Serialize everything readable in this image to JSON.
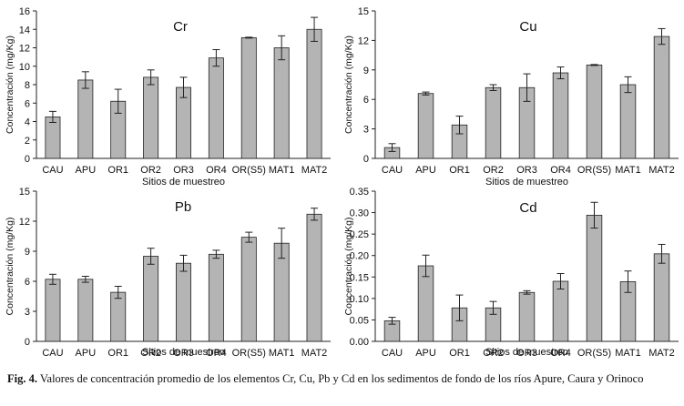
{
  "chart_data": [
    {
      "type": "bar",
      "title": "Cr",
      "xlabel": "Sitios de muestreo",
      "ylabel": "Concentración (mg/Kg)",
      "categories": [
        "CAU",
        "APU",
        "OR1",
        "OR2",
        "OR3",
        "OR4",
        "OR(S5)",
        "MAT1",
        "MAT2"
      ],
      "values": [
        4.5,
        8.5,
        6.2,
        8.8,
        7.7,
        10.9,
        13.1,
        12.0,
        14.0
      ],
      "errors": [
        0.6,
        0.9,
        1.3,
        0.8,
        1.1,
        0.9,
        0.05,
        1.3,
        1.3
      ],
      "ylim": [
        0,
        16
      ],
      "yticks": [
        "0",
        "2",
        "4",
        "6",
        "8",
        "10",
        "12",
        "14",
        "16"
      ],
      "grid": false
    },
    {
      "type": "bar",
      "title": "Cu",
      "xlabel": "Sitios de muestreo",
      "ylabel": "Concentración (mg/Kg)",
      "categories": [
        "CAU",
        "APU",
        "OR1",
        "OR2",
        "OR3",
        "OR4",
        "OR(S5)",
        "MAT1",
        "MAT2"
      ],
      "values": [
        1.1,
        6.6,
        3.4,
        7.2,
        7.2,
        8.7,
        9.5,
        7.5,
        12.4
      ],
      "errors": [
        0.4,
        0.15,
        0.9,
        0.3,
        1.4,
        0.6,
        0.05,
        0.8,
        0.8
      ],
      "ylim": [
        0,
        15
      ],
      "yticks": [
        "0",
        "3",
        "6",
        "9",
        "12",
        "15"
      ],
      "grid": false
    },
    {
      "type": "bar",
      "title": "Pb",
      "xlabel": "Sitios de muestreo",
      "ylabel": "Concentración (mg/Kg)",
      "categories": [
        "CAU",
        "APU",
        "OR1",
        "OR2",
        "OR3",
        "OR4",
        "OR(S5)",
        "MAT1",
        "MAT2"
      ],
      "values": [
        6.2,
        6.2,
        4.9,
        8.5,
        7.8,
        8.7,
        10.4,
        9.8,
        12.7
      ],
      "errors": [
        0.5,
        0.3,
        0.6,
        0.8,
        0.8,
        0.4,
        0.5,
        1.5,
        0.6
      ],
      "ylim": [
        0,
        15
      ],
      "yticks": [
        "0",
        "3",
        "6",
        "9",
        "12",
        "15"
      ],
      "grid": false
    },
    {
      "type": "bar",
      "title": "Cd",
      "xlabel": "Sitios de muestreo",
      "ylabel": "Concentración (mg/Kg)",
      "categories": [
        "CAU",
        "APU",
        "OR1",
        "OR2",
        "OR3",
        "OR4",
        "OR(S5)",
        "MAT1",
        "MAT2"
      ],
      "values": [
        0.048,
        0.176,
        0.078,
        0.078,
        0.114,
        0.14,
        0.294,
        0.139,
        0.204
      ],
      "errors": [
        0.008,
        0.025,
        0.03,
        0.015,
        0.004,
        0.018,
        0.03,
        0.025,
        0.022
      ],
      "ylim": [
        0,
        0.35
      ],
      "yticks": [
        "0.00",
        "0.05",
        "0.10",
        "0.15",
        "0.20",
        "0.25",
        "0.30",
        "0.35"
      ],
      "grid": false
    }
  ],
  "caption": {
    "label": "Fig. 4.",
    "text": "Valores de concentración promedio de los elementos Cr, Cu, Pb y Cd en los sedimentos de fondo de los ríos Apure, Caura y Orinoco"
  },
  "colors": {
    "bar_fill": "#b4b4b4",
    "bar_stroke": "#222222",
    "axis": "#222222"
  }
}
